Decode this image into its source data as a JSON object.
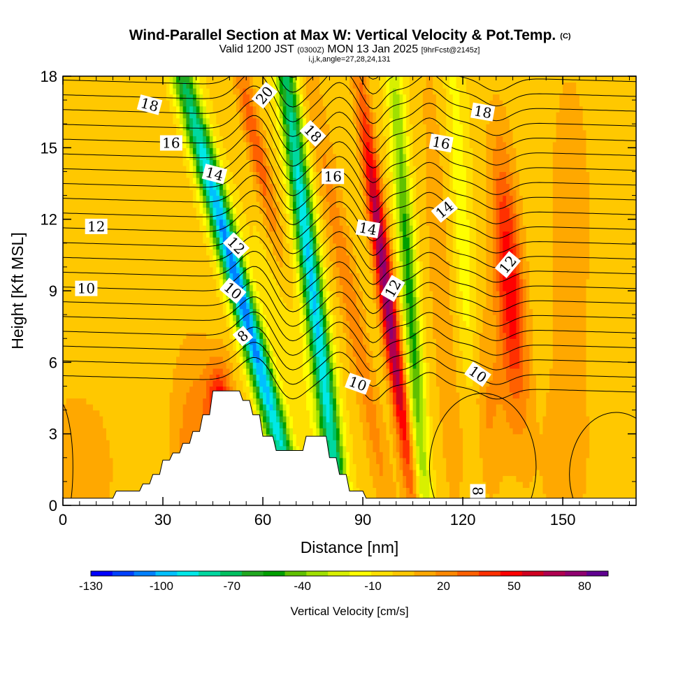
{
  "header": {
    "title": "Wind-Parallel Section at Max W: Vertical Velocity & Pot.Temp.",
    "copyright": "(C)",
    "valid_prefix": "Valid 1200 JST",
    "valid_zulu": "(0300Z)",
    "valid_date": "MON 13 Jan 2025",
    "forecast": "[9hrFcst@2145z]",
    "indices": "i,j,k,angle=27,28,24,131"
  },
  "chart_data": {
    "type": "heatmap",
    "xlabel": "Distance [nm]",
    "ylabel": "Height [Kft MSL]",
    "xlim": [
      0,
      172
    ],
    "ylim": [
      0,
      18
    ],
    "x_ticks": [
      0,
      30,
      60,
      90,
      120,
      150
    ],
    "y_ticks": [
      0,
      3,
      6,
      9,
      12,
      15,
      18
    ],
    "grid": false,
    "colorbar": {
      "label": "Vertical Velocity [cm/s]",
      "orientation": "horizontal",
      "placement": "bottom",
      "min": -130,
      "max": 90,
      "tick_values": [
        -130,
        -100,
        -70,
        -40,
        -10,
        20,
        50,
        80
      ],
      "colors": [
        "#0000ff",
        "#0040ff",
        "#0080ff",
        "#00c0ff",
        "#00e8e8",
        "#00d8a0",
        "#00c060",
        "#20a820",
        "#009f00",
        "#60c000",
        "#a0e000",
        "#d8f000",
        "#ffff00",
        "#ffe000",
        "#ffc800",
        "#ffa800",
        "#ff8800",
        "#ff6000",
        "#ff3000",
        "#ff0000",
        "#d00020",
        "#b00050",
        "#900070",
        "#600090"
      ]
    },
    "terrain": [
      [
        0,
        0.3
      ],
      [
        15,
        0.3
      ],
      [
        16,
        0.6
      ],
      [
        23,
        0.6
      ],
      [
        24,
        0.9
      ],
      [
        26,
        0.9
      ],
      [
        27,
        1.3
      ],
      [
        29,
        1.3
      ],
      [
        30,
        1.9
      ],
      [
        32,
        1.9
      ],
      [
        33,
        2.2
      ],
      [
        35,
        2.2
      ],
      [
        36,
        2.6
      ],
      [
        38,
        2.6
      ],
      [
        39,
        3.1
      ],
      [
        41,
        3.1
      ],
      [
        42,
        3.8
      ],
      [
        44,
        3.8
      ],
      [
        45,
        4.8
      ],
      [
        53,
        4.8
      ],
      [
        54,
        4.4
      ],
      [
        56,
        4.4
      ],
      [
        57,
        3.8
      ],
      [
        59,
        3.8
      ],
      [
        60,
        2.9
      ],
      [
        63,
        2.9
      ],
      [
        64,
        2.3
      ],
      [
        72,
        2.3
      ],
      [
        73,
        2.9
      ],
      [
        79,
        2.9
      ],
      [
        80,
        2.0
      ],
      [
        82,
        2.0
      ],
      [
        83,
        1.3
      ],
      [
        85,
        1.3
      ],
      [
        86,
        0.6
      ],
      [
        90,
        0.6
      ],
      [
        91,
        0.3
      ],
      [
        172,
        0.3
      ]
    ],
    "w_features": [
      {
        "x": 4,
        "y": 1.5,
        "w": 10,
        "sx": 14,
        "sy": 4,
        "tilt": 0
      },
      {
        "x": 22,
        "y": 5.5,
        "w": 0,
        "sx": 6,
        "sy": 8,
        "tilt": 0
      },
      {
        "x": 40,
        "y": 2.5,
        "w": 24,
        "sx": 5,
        "sy": 3,
        "tilt": 0
      },
      {
        "x": 47,
        "y": 4.2,
        "w": 46,
        "sx": 2.5,
        "sy": 1.3,
        "tilt": 0
      },
      {
        "x": 31,
        "y": 13,
        "w": 3,
        "sx": 6,
        "sy": 5,
        "tilt": 0
      },
      {
        "x": 53,
        "y": 9,
        "w": -110,
        "sx": 2.5,
        "sy": 9,
        "tilt": -1.9
      },
      {
        "x": 58,
        "y": 15,
        "w": 42,
        "sx": 2.2,
        "sy": 4,
        "tilt": -1.5
      },
      {
        "x": 65,
        "y": 10,
        "w": -12,
        "sx": 3,
        "sy": 9,
        "tilt": -1.5
      },
      {
        "x": 75,
        "y": 9,
        "w": -95,
        "sx": 2.2,
        "sy": 11,
        "tilt": -0.9
      },
      {
        "x": 87,
        "y": 8,
        "w": 22,
        "sx": 2.5,
        "sy": 9,
        "tilt": -1.3
      },
      {
        "x": 97,
        "y": 9,
        "w": 78,
        "sx": 1.8,
        "sy": 6,
        "tilt": -0.9
      },
      {
        "x": 104,
        "y": 9,
        "w": -52,
        "sx": 1.8,
        "sy": 8,
        "tilt": -0.5
      },
      {
        "x": 113,
        "y": 10,
        "w": 12,
        "sx": 3,
        "sy": 9,
        "tilt": -0.4
      },
      {
        "x": 120,
        "y": 11,
        "w": -18,
        "sx": 2,
        "sy": 8,
        "tilt": -0.4
      },
      {
        "x": 134,
        "y": 9.5,
        "w": 50,
        "sx": 3,
        "sy": 4,
        "tilt": -0.5
      },
      {
        "x": 127,
        "y": 4,
        "w": 18,
        "sx": 5,
        "sy": 3,
        "tilt": 0
      },
      {
        "x": 144,
        "y": 8,
        "w": -3,
        "sx": 2.5,
        "sy": 6,
        "tilt": 0
      },
      {
        "x": 152,
        "y": 12,
        "w": 15,
        "sx": 5,
        "sy": 5,
        "tilt": 0
      },
      {
        "x": 150,
        "y": 2,
        "w": 14,
        "sx": 6,
        "sy": 3,
        "tilt": 0
      }
    ],
    "contour_labels": [
      {
        "text": "18",
        "x": 26,
        "y": 16.8,
        "angle": 15
      },
      {
        "text": "20",
        "x": 60.5,
        "y": 17.2,
        "angle": -50
      },
      {
        "text": "18",
        "x": 75,
        "y": 15.6,
        "angle": 45
      },
      {
        "text": "18",
        "x": 126,
        "y": 16.5,
        "angle": 10
      },
      {
        "text": "16",
        "x": 32.5,
        "y": 15.2,
        "angle": 0
      },
      {
        "text": "16",
        "x": 81,
        "y": 13.8,
        "angle": 0
      },
      {
        "text": "16",
        "x": 113.5,
        "y": 15.2,
        "angle": 10
      },
      {
        "text": "14",
        "x": 45.5,
        "y": 13.9,
        "angle": 15
      },
      {
        "text": "14",
        "x": 91.5,
        "y": 11.6,
        "angle": 10
      },
      {
        "text": "14",
        "x": 114.5,
        "y": 12.4,
        "angle": -40
      },
      {
        "text": "12",
        "x": 10,
        "y": 11.7,
        "angle": 0
      },
      {
        "text": "12",
        "x": 52,
        "y": 10.9,
        "angle": 45
      },
      {
        "text": "12",
        "x": 99,
        "y": 9.1,
        "angle": -60
      },
      {
        "text": "12",
        "x": 133.5,
        "y": 10.1,
        "angle": -50
      },
      {
        "text": "10",
        "x": 7,
        "y": 9.1,
        "angle": 0
      },
      {
        "text": "10",
        "x": 51,
        "y": 9.0,
        "angle": 40
      },
      {
        "text": "10",
        "x": 88.5,
        "y": 5.1,
        "angle": 20
      },
      {
        "text": "10",
        "x": 124.5,
        "y": 5.5,
        "angle": 35
      },
      {
        "text": "8",
        "x": 54,
        "y": 7.1,
        "angle": -40
      },
      {
        "text": "8",
        "x": 124.5,
        "y": 0.6,
        "angle": 90
      }
    ]
  }
}
